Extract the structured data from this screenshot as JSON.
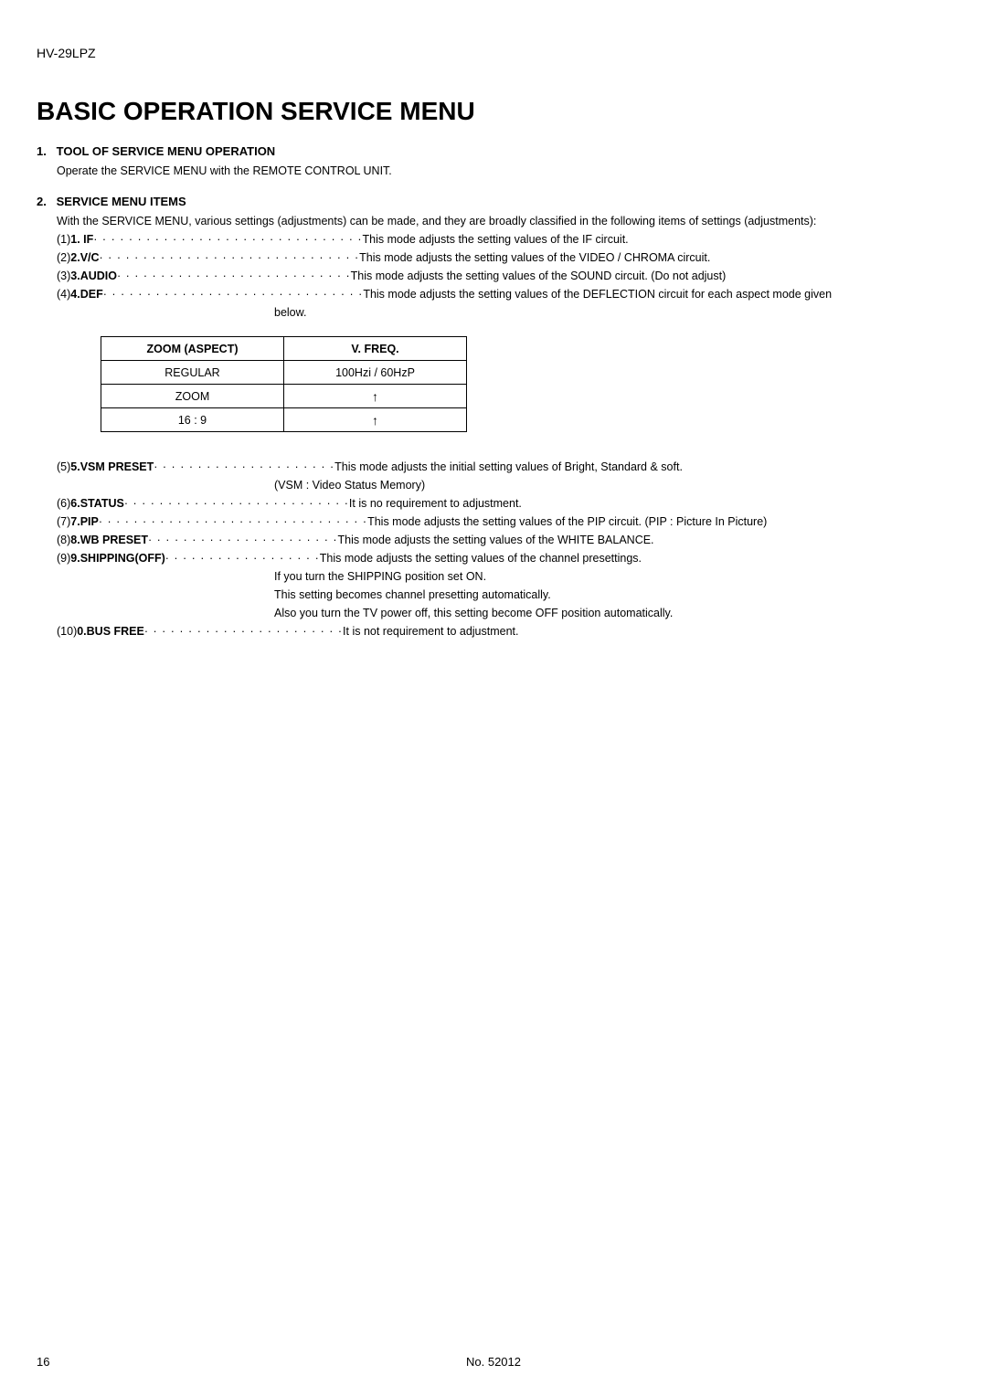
{
  "header": {
    "model": "HV-29LPZ"
  },
  "title": "BASIC OPERATION SERVICE MENU",
  "section1": {
    "num": "1.",
    "heading": "TOOL OF SERVICE MENU OPERATION",
    "body": "Operate the SERVICE MENU with the REMOTE CONTROL UNIT."
  },
  "section2": {
    "num": "2.",
    "heading": "SERVICE MENU ITEMS",
    "intro": "With the SERVICE MENU, various settings (adjustments) can be made, and they are broadly classified in the following items of settings (adjustments):",
    "items14": [
      {
        "prefix": "(1) ",
        "key": "1. IF",
        "dots": " · · · · · · · · · · · · · · · · · · · · · · · · · · · · · · ·",
        "desc": " This mode adjusts the setting values of the IF circuit."
      },
      {
        "prefix": "(2) ",
        "key": "2.V/C",
        "dots": " · · · · · · · · · · · · · · · · · · · · · · · · · · · · · ·",
        "desc": " This mode adjusts the setting values of the VIDEO / CHROMA circuit."
      },
      {
        "prefix": "(3) ",
        "key": "3.AUDIO",
        "dots": " · · · · · · · · · · · · · · · · · · · · · · · · · · ·",
        "desc": " This mode adjusts the setting values of the SOUND circuit. (Do not adjust)"
      },
      {
        "prefix": "(4) ",
        "key": "4.DEF",
        "dots": " · · · · · · · · · · · · · · · · · · · · · · · · · · · · · ·",
        "desc": " This mode adjusts the setting values of the DEFLECTION circuit for each aspect mode given"
      }
    ],
    "item4_cont": "below."
  },
  "aspect_table": {
    "cols": [
      "ZOOM (ASPECT)",
      "V. FREQ."
    ],
    "rows": [
      [
        "REGULAR",
        "100Hzi / 60HzP"
      ],
      [
        "ZOOM",
        "↑"
      ],
      [
        "16 : 9",
        "↑"
      ]
    ]
  },
  "items_rest": [
    {
      "prefix": "(5) ",
      "key": "5.VSM PRESET",
      "dots": " · · · · · · · · · · · · · · · · · · · · ·",
      "desc": " This mode adjusts the initial setting values of Bright, Standard & soft."
    },
    {
      "cont": "(VSM : Video Status Memory)"
    },
    {
      "prefix": "(6) ",
      "key": "6.STATUS",
      "dots": " · · · · · · · · · · · · · · · · · · · · · · · · · ·",
      "desc": " It is no requirement to adjustment."
    },
    {
      "prefix": "(7) ",
      "key": "7.PIP",
      "dots": " · · · · · · · · · · · · · · · · · · · · · · · · · · · · · · ·",
      "desc": " This mode adjusts the setting values of the PIP circuit. (PIP : Picture In Picture)"
    },
    {
      "prefix": "(8) ",
      "key": "8.WB PRESET",
      "dots": " · · · · · · · · · · · · · · · · · · · · · ·",
      "desc": " This mode adjusts the setting values of the WHITE BALANCE."
    },
    {
      "prefix": "(9) ",
      "key": "9.SHIPPING(OFF)",
      "dots": " · · · · · · · · · · · · · · · · · ·",
      "desc": " This mode adjusts the setting values of the channel presettings."
    },
    {
      "cont": "If you turn the SHIPPING position set ON."
    },
    {
      "cont": "This setting becomes channel presetting automatically."
    },
    {
      "cont": "Also you turn the TV power off, this setting become OFF position automatically."
    },
    {
      "prefix": "(10) ",
      "key": "0.BUS FREE",
      "dots": " · · · · · · · · · · · · · · · · · · · · · · ·",
      "desc": " It is not requirement to adjustment."
    }
  ],
  "footer": {
    "page": "16",
    "docnum": "No. 52012"
  }
}
